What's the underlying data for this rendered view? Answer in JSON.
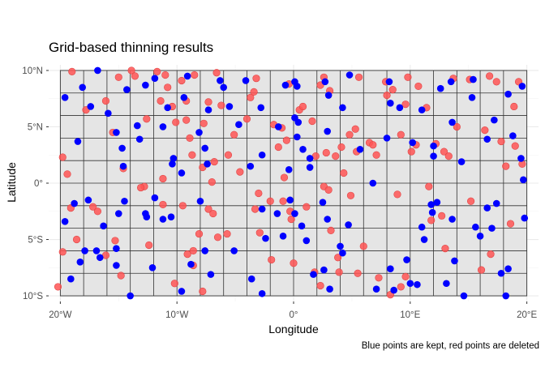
{
  "chart_data": {
    "type": "scatter",
    "title": "Grid-based thinning results",
    "xlabel": "Longitude",
    "ylabel": "Latitude",
    "caption": "Blue points are kept, red points are deleted",
    "xlim": [
      -21,
      21
    ],
    "ylim": [
      -10.5,
      10.5
    ],
    "x_ticks": [
      -20,
      -10,
      0,
      10,
      20
    ],
    "x_tick_labels": [
      "20°W",
      "10°W",
      "0°",
      "10°E",
      "20°E"
    ],
    "y_ticks": [
      -10,
      -5,
      0,
      5,
      10
    ],
    "y_tick_labels": [
      "10°S",
      "5°S",
      "0°",
      "5°N",
      "10°N"
    ],
    "grid": true,
    "region": {
      "x": [
        -20,
        20
      ],
      "y": [
        -10,
        10
      ],
      "cell_width": 2,
      "cell_height": 2
    },
    "region_fill": "#e5e5e5",
    "point_colors": {
      "kept": "#0000ff",
      "deleted": "#ff5555"
    },
    "series": [
      {
        "status": "kept",
        "points": [
          [
            -19.6,
            7.6
          ],
          [
            -18.5,
            3.7
          ],
          [
            -18.1,
            8.5
          ],
          [
            -17.4,
            6.8
          ],
          [
            -16.8,
            10.0
          ],
          [
            -15.9,
            6.2
          ],
          [
            -15.2,
            4.5
          ],
          [
            -14.7,
            3.1
          ],
          [
            -14.6,
            1.5
          ],
          [
            -14.3,
            8.3
          ],
          [
            -13.4,
            5.1
          ],
          [
            -13.2,
            3.9
          ],
          [
            -12.7,
            8.7
          ],
          [
            -11.9,
            9.3
          ],
          [
            -11.2,
            5.0
          ],
          [
            -10.8,
            6.7
          ],
          [
            -10.3,
            2.2
          ],
          [
            -10.4,
            1.7
          ],
          [
            -9.6,
            0.9
          ],
          [
            -9.4,
            7.6
          ],
          [
            -9.1,
            9.5
          ],
          [
            -8.1,
            4.5
          ],
          [
            -7.6,
            3.1
          ],
          [
            -7.3,
            6.5
          ],
          [
            -7.4,
            1.7
          ],
          [
            -6.3,
            9.1
          ],
          [
            -6.0,
            8.5
          ],
          [
            -5.5,
            6.8
          ],
          [
            -4.7,
            5.2
          ],
          [
            -4.1,
            9.1
          ],
          [
            -3.7,
            1.5
          ],
          [
            -2.7,
            2.5
          ],
          [
            -2.8,
            6.7
          ],
          [
            -1.3,
            5.0
          ],
          [
            -0.7,
            8.7
          ],
          [
            -0.4,
            1.2
          ],
          [
            0.1,
            9.0
          ],
          [
            0.3,
            8.6
          ],
          [
            0.1,
            5.8
          ],
          [
            0.4,
            5.4
          ],
          [
            0.3,
            4.1
          ],
          [
            0.8,
            3.0
          ],
          [
            1.4,
            2.2
          ],
          [
            1.4,
            1.4
          ],
          [
            2.7,
            9.0
          ],
          [
            2.9,
            4.6
          ],
          [
            3.0,
            7.8
          ],
          [
            4.2,
            6.7
          ],
          [
            4.8,
            9.6
          ],
          [
            5.7,
            3.0
          ],
          [
            6.8,
            0.0
          ],
          [
            8.2,
            9.0
          ],
          [
            8.0,
            4.0
          ],
          [
            8.3,
            7.1
          ],
          [
            9.1,
            6.7
          ],
          [
            10.2,
            3.6
          ],
          [
            11.0,
            6.5
          ],
          [
            12.0,
            3.3
          ],
          [
            12.0,
            2.4
          ],
          [
            12.6,
            8.4
          ],
          [
            13.5,
            9.0
          ],
          [
            13.6,
            5.4
          ],
          [
            14.4,
            1.9
          ],
          [
            15.3,
            7.6
          ],
          [
            15.4,
            9.2
          ],
          [
            16.6,
            3.9
          ],
          [
            17.2,
            5.6
          ],
          [
            18.4,
            7.9
          ],
          [
            18.8,
            4.2
          ],
          [
            19.6,
            8.6
          ],
          [
            19.5,
            2.2
          ],
          [
            19.7,
            0.3
          ],
          [
            19.8,
            -3.1
          ],
          [
            -19.6,
            -3.4
          ],
          [
            -19.1,
            -8.5
          ],
          [
            -18.8,
            -1.8
          ],
          [
            -18.3,
            -7.0
          ],
          [
            -17.9,
            -6.0
          ],
          [
            -17.6,
            -1.5
          ],
          [
            -16.9,
            -6.0
          ],
          [
            -16.6,
            -6.6
          ],
          [
            -16.3,
            -3.8
          ],
          [
            -15.2,
            -5.8
          ],
          [
            -15.2,
            -7.3
          ],
          [
            -15.0,
            -2.7
          ],
          [
            -14.5,
            -1.6
          ],
          [
            -14.0,
            -10.0
          ],
          [
            -12.1,
            -7.5
          ],
          [
            -12.7,
            -2.7
          ],
          [
            -12.6,
            -3.0
          ],
          [
            -11.9,
            -1.3
          ],
          [
            -11.2,
            -3.2
          ],
          [
            -10.5,
            -3.0
          ],
          [
            -9.6,
            -9.6
          ],
          [
            -8.8,
            -7.2
          ],
          [
            -8.0,
            -1.6
          ],
          [
            -7.6,
            -6.0
          ],
          [
            -7.1,
            -8.1
          ],
          [
            -5.1,
            -6.0
          ],
          [
            -3.6,
            -8.5
          ],
          [
            -2.7,
            -2.3
          ],
          [
            -2.4,
            -4.9
          ],
          [
            -2.7,
            -9.8
          ],
          [
            -1.4,
            -2.7
          ],
          [
            -0.9,
            -4.7
          ],
          [
            -0.3,
            -1.5
          ],
          [
            0.1,
            -2.7
          ],
          [
            0.7,
            -3.8
          ],
          [
            1.1,
            -5.1
          ],
          [
            1.7,
            -8.1
          ],
          [
            2.6,
            -7.7
          ],
          [
            2.5,
            -1.7
          ],
          [
            2.9,
            -3.2
          ],
          [
            3.1,
            -9.4
          ],
          [
            4.0,
            -5.6
          ],
          [
            4.2,
            -6.2
          ],
          [
            4.7,
            -3.7
          ],
          [
            7.1,
            -9.4
          ],
          [
            8.3,
            -7.6
          ],
          [
            8.6,
            -9.5
          ],
          [
            9.7,
            -6.8
          ],
          [
            10.0,
            -8.9
          ],
          [
            10.6,
            -9.0
          ],
          [
            11.0,
            -3.9
          ],
          [
            11.2,
            -5.0
          ],
          [
            11.9,
            -2.6
          ],
          [
            11.8,
            -1.9
          ],
          [
            12.3,
            -1.7
          ],
          [
            13.6,
            -3.2
          ],
          [
            13.1,
            -8.9
          ],
          [
            13.8,
            -6.9
          ],
          [
            14.6,
            -10.0
          ],
          [
            15.6,
            -3.9
          ],
          [
            16.0,
            -4.7
          ],
          [
            16.6,
            -2.2
          ],
          [
            17.0,
            -4.0
          ],
          [
            17.4,
            -1.8
          ],
          [
            17.8,
            -8.0
          ],
          [
            18.4,
            -7.6
          ],
          [
            18.2,
            -10.0
          ]
        ]
      },
      {
        "status": "deleted",
        "points": [
          [
            -19.8,
            2.3
          ],
          [
            -19.4,
            0.8
          ],
          [
            -19.0,
            9.9
          ],
          [
            -17.8,
            6.5
          ],
          [
            -16.1,
            7.3
          ],
          [
            -15.5,
            4.5
          ],
          [
            -15.0,
            9.4
          ],
          [
            -14.6,
            1.3
          ],
          [
            -13.9,
            10.0
          ],
          [
            -13.6,
            9.5
          ],
          [
            -12.8,
            -0.3
          ],
          [
            -12.6,
            5.7
          ],
          [
            -11.7,
            9.9
          ],
          [
            -11.4,
            7.3
          ],
          [
            -11.2,
            0.4
          ],
          [
            -11.0,
            9.6
          ],
          [
            -10.8,
            8.5
          ],
          [
            -10.4,
            6.8
          ],
          [
            -10.1,
            5.4
          ],
          [
            -9.6,
            9.1
          ],
          [
            -9.2,
            5.6
          ],
          [
            -9.2,
            7.3
          ],
          [
            -8.9,
            4.0
          ],
          [
            -8.7,
            2.5
          ],
          [
            -8.5,
            9.6
          ],
          [
            -7.8,
            1.4
          ],
          [
            -7.7,
            5.3
          ],
          [
            -7.3,
            7.2
          ],
          [
            -7.0,
            0.1
          ],
          [
            -6.8,
            1.9
          ],
          [
            -6.6,
            9.8
          ],
          [
            -6.2,
            6.9
          ],
          [
            -5.6,
            2.5
          ],
          [
            -5.1,
            4.3
          ],
          [
            -4.6,
            1.0
          ],
          [
            -4.0,
            5.7
          ],
          [
            -3.7,
            7.6
          ],
          [
            -3.4,
            8.1
          ],
          [
            -3.2,
            9.3
          ],
          [
            -1.7,
            5.2
          ],
          [
            -1.3,
            3.2
          ],
          [
            -1.0,
            4.9
          ],
          [
            -0.8,
            0.5
          ],
          [
            -0.6,
            3.8
          ],
          [
            -0.4,
            8.8
          ],
          [
            0.5,
            6.5
          ],
          [
            0.8,
            6.8
          ],
          [
            1.6,
            5.5
          ],
          [
            1.9,
            2.4
          ],
          [
            2.3,
            8.7
          ],
          [
            2.6,
            9.4
          ],
          [
            2.8,
            2.7
          ],
          [
            3.1,
            8.2
          ],
          [
            3.6,
            2.4
          ],
          [
            4.1,
            3.2
          ],
          [
            4.3,
            0.9
          ],
          [
            4.8,
            4.3
          ],
          [
            5.3,
            4.8
          ],
          [
            5.4,
            2.8
          ],
          [
            5.6,
            9.4
          ],
          [
            6.5,
            3.6
          ],
          [
            6.8,
            3.4
          ],
          [
            7.1,
            2.5
          ],
          [
            7.9,
            9.0
          ],
          [
            8.0,
            7.8
          ],
          [
            8.5,
            8.3
          ],
          [
            9.2,
            4.3
          ],
          [
            9.6,
            7.0
          ],
          [
            9.8,
            9.4
          ],
          [
            10.1,
            2.8
          ],
          [
            10.5,
            3.4
          ],
          [
            10.7,
            8.6
          ],
          [
            11.4,
            6.7
          ],
          [
            12.2,
            3.5
          ],
          [
            12.9,
            2.8
          ],
          [
            13.3,
            2.4
          ],
          [
            13.7,
            9.3
          ],
          [
            14.0,
            5.0
          ],
          [
            15.1,
            9.2
          ],
          [
            16.4,
            4.7
          ],
          [
            16.8,
            9.5
          ],
          [
            17.4,
            9.0
          ],
          [
            17.8,
            3.7
          ],
          [
            18.2,
            1.5
          ],
          [
            18.9,
            6.8
          ],
          [
            19.0,
            3.3
          ],
          [
            19.3,
            9.0
          ],
          [
            19.6,
            1.7
          ],
          [
            -20.2,
            -9.2
          ],
          [
            -19.8,
            -6.1
          ],
          [
            -19.1,
            -2.2
          ],
          [
            -18.6,
            -5.0
          ],
          [
            -17.2,
            -2.1
          ],
          [
            -16.8,
            -2.5
          ],
          [
            -16.1,
            -6.4
          ],
          [
            -15.3,
            -5.1
          ],
          [
            -14.8,
            -8.2
          ],
          [
            -13.1,
            -0.4
          ],
          [
            -12.4,
            -5.5
          ],
          [
            -11.2,
            -1.9
          ],
          [
            -10.2,
            -8.9
          ],
          [
            -9.5,
            -2.0
          ],
          [
            -9.1,
            -6.3
          ],
          [
            -8.6,
            -6.0
          ],
          [
            -8.6,
            -7.3
          ],
          [
            -8.1,
            -4.5
          ],
          [
            -7.8,
            -9.6
          ],
          [
            -7.3,
            -2.3
          ],
          [
            -6.9,
            -2.7
          ],
          [
            -6.5,
            -4.8
          ],
          [
            -5.7,
            -4.5
          ],
          [
            -3.3,
            -2.3
          ],
          [
            -3.0,
            -0.9
          ],
          [
            -2.9,
            -4.4
          ],
          [
            -2.0,
            -1.6
          ],
          [
            -1.9,
            -6.8
          ],
          [
            -0.9,
            -1.6
          ],
          [
            -0.3,
            -2.5
          ],
          [
            -0.2,
            -3.2
          ],
          [
            0.0,
            -7.1
          ],
          [
            1.1,
            -2.1
          ],
          [
            1.8,
            -7.9
          ],
          [
            2.3,
            -9.1
          ],
          [
            2.6,
            -0.3
          ],
          [
            3.0,
            -0.6
          ],
          [
            3.2,
            -4.2
          ],
          [
            3.8,
            -6.6
          ],
          [
            3.9,
            -7.9
          ],
          [
            4.9,
            -1.1
          ],
          [
            5.5,
            -8.0
          ],
          [
            6.0,
            -5.6
          ],
          [
            7.3,
            -8.4
          ],
          [
            8.3,
            -9.9
          ],
          [
            8.9,
            -1.0
          ],
          [
            9.2,
            -9.2
          ],
          [
            9.6,
            -8.3
          ],
          [
            11.6,
            -0.3
          ],
          [
            11.8,
            -3.3
          ],
          [
            12.7,
            -2.9
          ],
          [
            13.0,
            -5.8
          ],
          [
            15.2,
            -1.6
          ],
          [
            16.1,
            -7.7
          ],
          [
            16.9,
            -6.3
          ],
          [
            18.6,
            -3.6
          ]
        ]
      }
    ]
  }
}
